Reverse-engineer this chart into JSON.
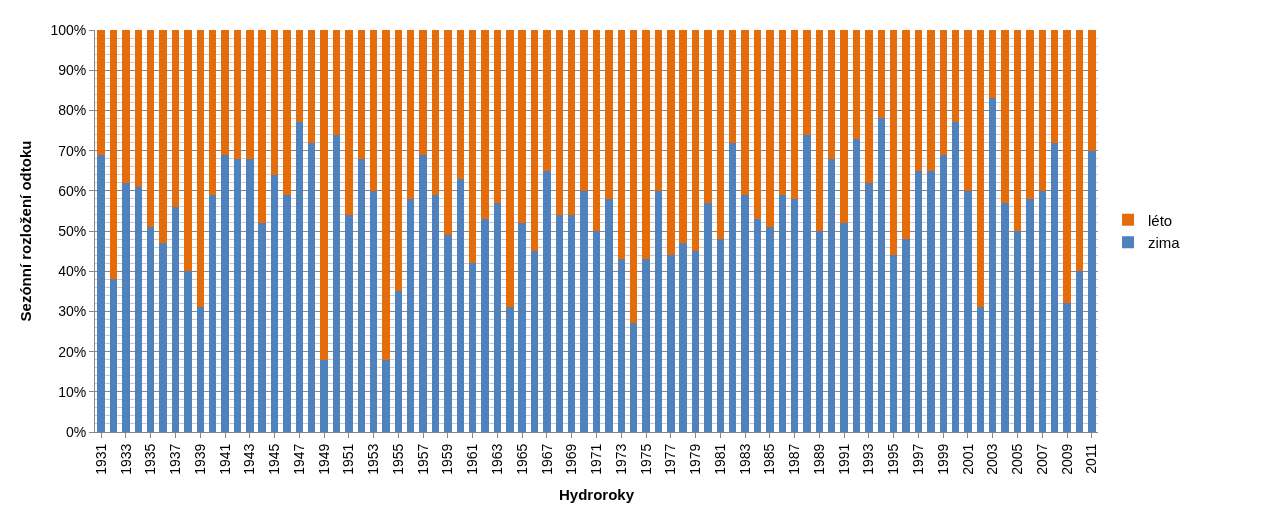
{
  "chart_data": {
    "type": "bar",
    "stacked": true,
    "xlabel": "Hydroroky",
    "ylabel": "Sezónní rozložení odtoku",
    "categories": [
      "1931",
      null,
      "1933",
      null,
      "1935",
      null,
      "1937",
      null,
      "1939",
      null,
      "1941",
      null,
      "1943",
      null,
      "1945",
      null,
      "1947",
      null,
      "1949",
      null,
      "1951",
      null,
      "1953",
      null,
      "1955",
      null,
      "1957",
      null,
      "1959",
      null,
      "1961",
      null,
      "1963",
      null,
      "1965",
      null,
      "1967",
      null,
      "1969",
      null,
      "1971",
      null,
      "1973",
      null,
      "1975",
      null,
      "1977",
      null,
      "1979",
      null,
      "1981",
      null,
      "1983",
      null,
      "1985",
      null,
      "1987",
      null,
      "1989",
      null,
      "1991",
      null,
      "1993",
      null,
      "1995",
      null,
      "1997",
      null,
      "1999",
      null,
      "2001",
      null,
      "2003",
      null,
      "2005",
      null,
      "2007",
      null,
      "2009",
      null,
      "2011"
    ],
    "series": [
      {
        "name": "zima",
        "color": "#4f81bd",
        "values": [
          69,
          38,
          62,
          61,
          51,
          47,
          56,
          40,
          31,
          59,
          69,
          68,
          68,
          52,
          64,
          59,
          77,
          72,
          18,
          74,
          54,
          68,
          60,
          18,
          35,
          58,
          69,
          59,
          49,
          63,
          42,
          53,
          57,
          31,
          52,
          45,
          65,
          54,
          54,
          60,
          50,
          58,
          43,
          27,
          43,
          60,
          44,
          47,
          45,
          57,
          48,
          72,
          59,
          53,
          51,
          59,
          58,
          74,
          50,
          68,
          52,
          73,
          62,
          78,
          44,
          48,
          65,
          65,
          69,
          77,
          60,
          31,
          83,
          57,
          50,
          58,
          60,
          72,
          32,
          40,
          70
        ]
      },
      {
        "name": "léto",
        "color": "#e46c0a",
        "values": [
          31,
          62,
          38,
          39,
          49,
          53,
          44,
          60,
          69,
          41,
          31,
          32,
          32,
          48,
          36,
          41,
          23,
          28,
          82,
          26,
          46,
          32,
          40,
          82,
          65,
          42,
          31,
          41,
          51,
          37,
          58,
          47,
          43,
          69,
          48,
          55,
          35,
          46,
          46,
          40,
          50,
          42,
          57,
          73,
          57,
          40,
          56,
          53,
          55,
          43,
          52,
          28,
          41,
          47,
          49,
          41,
          42,
          26,
          50,
          32,
          48,
          27,
          38,
          22,
          56,
          52,
          35,
          35,
          31,
          23,
          40,
          69,
          17,
          43,
          50,
          42,
          40,
          28,
          68,
          60,
          30
        ]
      }
    ],
    "ylim": [
      0,
      100
    ],
    "yticks": [
      {
        "value": 0,
        "label": "0%"
      },
      {
        "value": 10,
        "label": "10%"
      },
      {
        "value": 20,
        "label": "20%"
      },
      {
        "value": 30,
        "label": "30%"
      },
      {
        "value": 40,
        "label": "40%"
      },
      {
        "value": 50,
        "label": "50%"
      },
      {
        "value": 60,
        "label": "60%"
      },
      {
        "value": 70,
        "label": "70%"
      },
      {
        "value": 80,
        "label": "80%"
      },
      {
        "value": 90,
        "label": "90%"
      },
      {
        "value": 100,
        "label": "100%"
      }
    ],
    "grid": "y",
    "legend": "right"
  }
}
